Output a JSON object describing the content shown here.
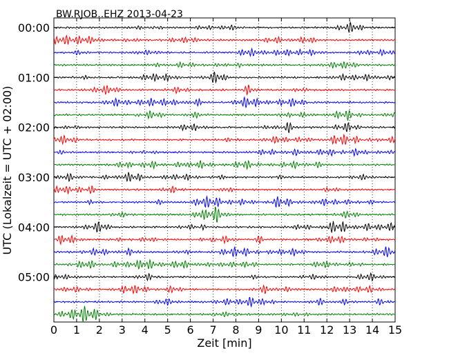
{
  "chart_data": {
    "type": "line",
    "title": "BW.RJOB..EHZ 2013-04-23",
    "xlabel": "Zeit  [min]",
    "ylabel": "UTC (Lokalzeit = UTC + 02:00)",
    "xlim": [
      0,
      15
    ],
    "xticks": [
      "0",
      "1",
      "2",
      "3",
      "4",
      "5",
      "6",
      "7",
      "8",
      "9",
      "10",
      "11",
      "12",
      "13",
      "14",
      "15"
    ],
    "yticks": [
      "00:00",
      "01:00",
      "02:00",
      "03:00",
      "04:00",
      "05:00"
    ],
    "grid": "vertical dotted",
    "trace_interval_min": 15,
    "trace_count": 24,
    "colors": [
      "#000000",
      "#ff0000",
      "#0000ff",
      "#008000"
    ]
  }
}
